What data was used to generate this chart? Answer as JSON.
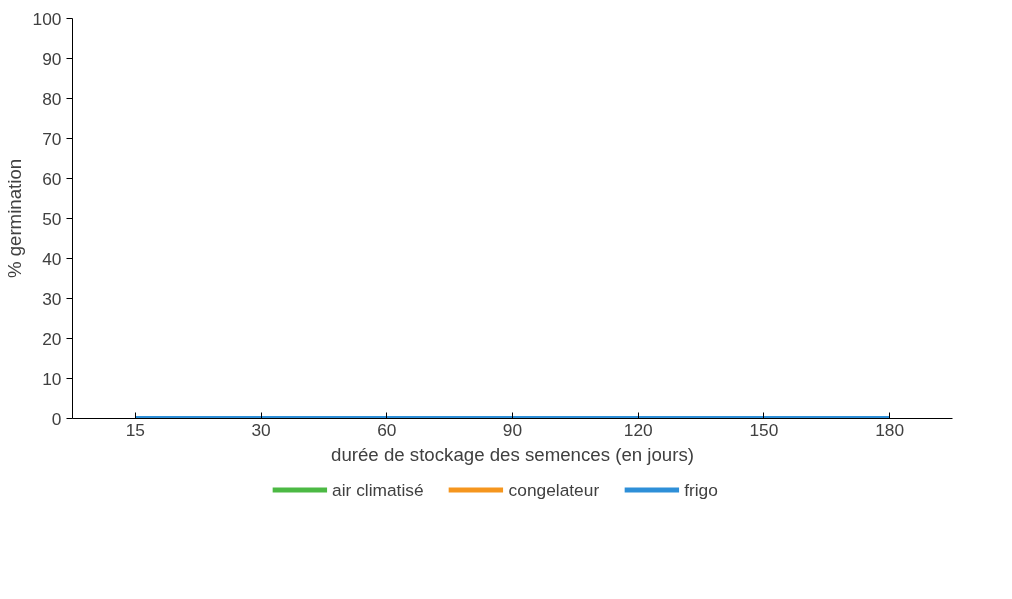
{
  "chart_data": {
    "type": "line",
    "xlabel": "durée de stockage des semences (en jours)",
    "ylabel": "% germination",
    "categories": [
      "15",
      "30",
      "60",
      "90",
      "120",
      "150",
      "180"
    ],
    "series": [
      {
        "name": "air climatisé",
        "color": "#4cb944",
        "values": [
          null,
          null,
          null,
          null,
          null,
          null,
          null
        ]
      },
      {
        "name": "congelateur",
        "color": "#f5961e",
        "values": [
          null,
          null,
          null,
          null,
          null,
          null,
          null
        ]
      },
      {
        "name": "frigo",
        "color": "#2e8fd8",
        "values": [
          0,
          0,
          0,
          0,
          0,
          0,
          0
        ]
      }
    ],
    "ylim": [
      0,
      100
    ],
    "yticks": [
      0,
      10,
      20,
      30,
      40,
      50,
      60,
      70,
      80,
      90,
      100
    ],
    "grid": false,
    "legend": "bottom",
    "marker": "none",
    "line_style": "solid"
  }
}
